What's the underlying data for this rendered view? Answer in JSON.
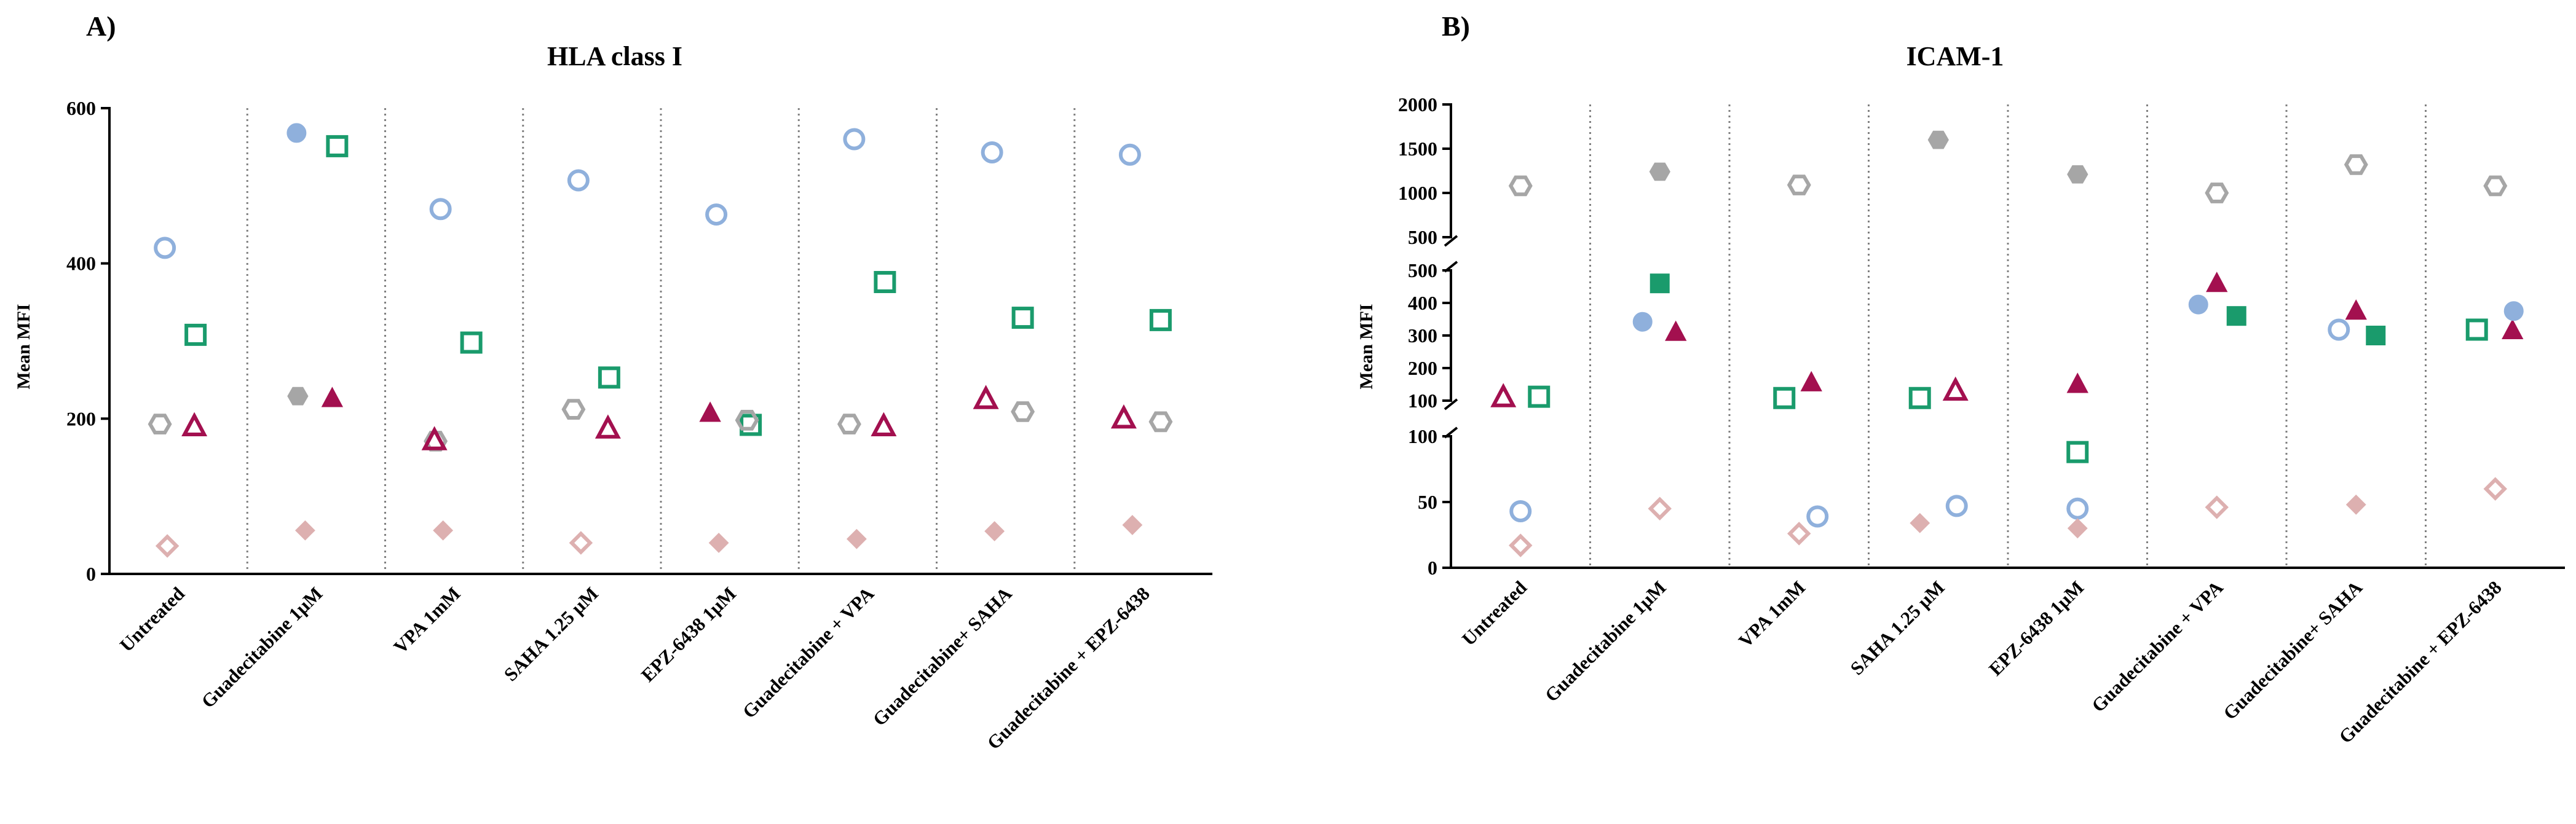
{
  "colors": {
    "hla_blue": "#8FB0DC",
    "green": "#1A9B6C",
    "grey": "#A6A6A6",
    "magenta": "#A3104F",
    "pink": "#DDB0B0",
    "axis": "#000000",
    "separator": "#808080"
  },
  "categories": [
    "Untreated",
    "Guadecitabine 1µM",
    "VPA 1mM",
    "SAHA 1.25 µM",
    "EPZ-6438 1µM",
    "Guadecitabine + VPA",
    "Guadecitabine+ SAHA",
    "Guadecitabine + EPZ-6438"
  ],
  "chart_data": [
    {
      "panel": "A)",
      "type": "scatter",
      "title": "HLA class I",
      "ylabel": "Mean MFI",
      "ylim": [
        0,
        600
      ],
      "yticks": [
        "0",
        "200",
        "400",
        "600"
      ],
      "series": [
        {
          "name": "blue circle",
          "shape": "circle",
          "color": "#8FB0DC",
          "filled": [
            false,
            true,
            false,
            false,
            false,
            false,
            false,
            false
          ],
          "values": [
            420,
            568,
            470,
            507,
            463,
            560,
            543,
            540
          ]
        },
        {
          "name": "green square",
          "shape": "square",
          "color": "#1A9B6C",
          "filled": [
            false,
            false,
            false,
            false,
            false,
            false,
            false,
            false
          ],
          "values": [
            308,
            551,
            298,
            253,
            192,
            376,
            330,
            327
          ]
        },
        {
          "name": "grey hexagon",
          "shape": "hexagon",
          "color": "#A6A6A6",
          "filled": [
            false,
            true,
            false,
            false,
            false,
            false,
            false,
            false
          ],
          "values": [
            193,
            229,
            171,
            212,
            198,
            193,
            209,
            196
          ]
        },
        {
          "name": "magenta triangle",
          "shape": "triangle",
          "color": "#A3104F",
          "filled": [
            false,
            true,
            false,
            false,
            true,
            false,
            false,
            false
          ],
          "values": [
            190,
            226,
            172,
            187,
            207,
            190,
            225,
            200
          ]
        },
        {
          "name": "pink diamond",
          "shape": "diamond",
          "color": "#DDB0B0",
          "filled": [
            false,
            true,
            true,
            false,
            true,
            true,
            true,
            true
          ],
          "values": [
            36,
            56,
            56,
            40,
            40,
            45,
            55,
            63
          ]
        }
      ]
    },
    {
      "panel": "B)",
      "type": "scatter",
      "title": "ICAM-1",
      "ylabel": "Mean MFI",
      "broken_axis": [
        [
          0,
          100
        ],
        [
          100,
          500
        ],
        [
          500,
          2000
        ]
      ],
      "yticks": [
        "0",
        "50",
        "100",
        "100",
        "200",
        "300",
        "400",
        "500",
        "500",
        "1000",
        "1500",
        "2000"
      ],
      "series": [
        {
          "name": "grey hexagon",
          "shape": "hexagon",
          "color": "#A6A6A6",
          "filled": [
            false,
            true,
            false,
            true,
            true,
            false,
            false,
            false
          ],
          "values": [
            1080,
            1240,
            1090,
            1600,
            1210,
            1000,
            1320,
            1080
          ]
        },
        {
          "name": "magenta triangle",
          "shape": "triangle",
          "color": "#A3104F",
          "filled": [
            false,
            true,
            true,
            false,
            true,
            true,
            true,
            true
          ],
          "values": [
            110,
            310,
            155,
            130,
            150,
            460,
            375,
            315
          ]
        },
        {
          "name": "green square",
          "shape": "square",
          "color": "#1A9B6C",
          "filled": [
            false,
            true,
            false,
            false,
            false,
            true,
            true,
            false
          ],
          "values": [
            112,
            460,
            108,
            108,
            88,
            360,
            300,
            318
          ]
        },
        {
          "name": "blue circle",
          "shape": "circle",
          "color": "#8FB0DC",
          "filled": [
            false,
            true,
            false,
            false,
            false,
            true,
            false,
            true
          ],
          "values": [
            43,
            342,
            39,
            47,
            45,
            395,
            318,
            375
          ]
        },
        {
          "name": "pink diamond",
          "shape": "diamond",
          "color": "#DDB0B0",
          "filled": [
            false,
            false,
            false,
            true,
            true,
            false,
            true,
            false
          ],
          "values": [
            17,
            45,
            26,
            34,
            30,
            46,
            48,
            60
          ]
        }
      ]
    }
  ]
}
